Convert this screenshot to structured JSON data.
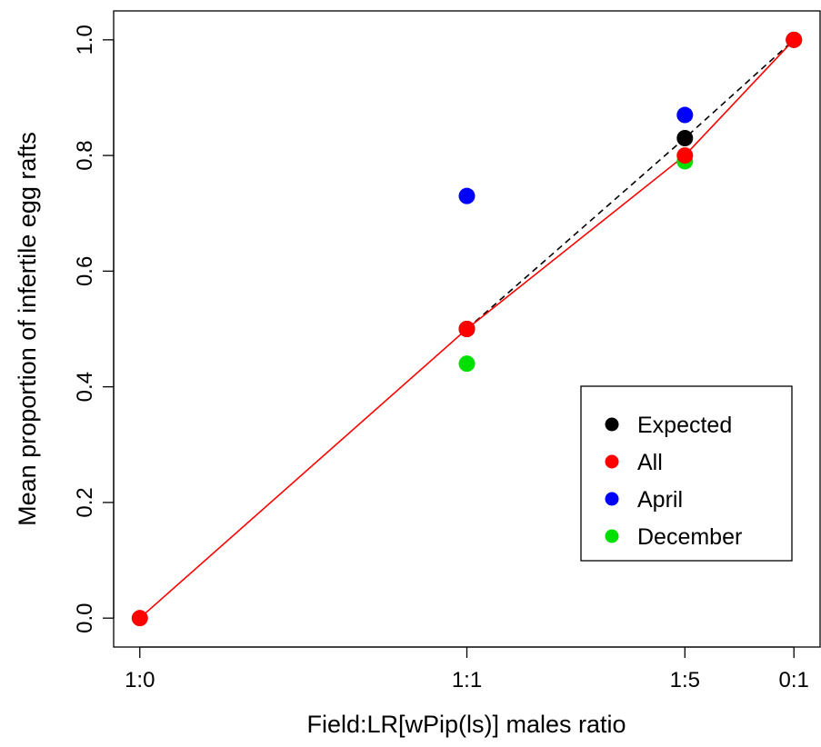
{
  "chart_data": {
    "type": "scatter",
    "xlabel": "Field:LR[wPip(ls)] males ratio",
    "ylabel": "Mean proportion of infertile egg rafts",
    "x_tick_labels": [
      "1:0",
      "1:1",
      "1:5",
      "0:1"
    ],
    "x_tick_positions": [
      0,
      0.5,
      0.8333,
      1
    ],
    "y_ticks": [
      0.0,
      0.2,
      0.4,
      0.6,
      0.8,
      1.0
    ],
    "y_tick_labels": [
      "0.0",
      "0.2",
      "0.4",
      "0.6",
      "0.8",
      "1.0"
    ],
    "xlim": [
      -0.04,
      1.04
    ],
    "ylim": [
      -0.05,
      1.05
    ],
    "grid": false,
    "legend_position": "bottom-right",
    "series": [
      {
        "name": "Expected",
        "color": "#000000",
        "line": "dashed",
        "x": [
          0.5,
          0.8333,
          1
        ],
        "y": [
          0.5,
          0.83,
          1.0
        ]
      },
      {
        "name": "All",
        "color": "#ff0000",
        "line": "solid",
        "x": [
          0,
          0.5,
          0.8333,
          1
        ],
        "y": [
          0.0,
          0.5,
          0.8,
          1.0
        ]
      },
      {
        "name": "April",
        "color": "#0000ff",
        "line": "none",
        "x": [
          0.5,
          0.8333
        ],
        "y": [
          0.73,
          0.87
        ]
      },
      {
        "name": "December",
        "color": "#00e000",
        "line": "none",
        "x": [
          0.5,
          0.8333
        ],
        "y": [
          0.44,
          0.79
        ]
      }
    ],
    "legend": [
      "Expected",
      "All",
      "April",
      "December"
    ],
    "draw_order": [
      "April",
      "December",
      "Expected",
      "All"
    ]
  }
}
